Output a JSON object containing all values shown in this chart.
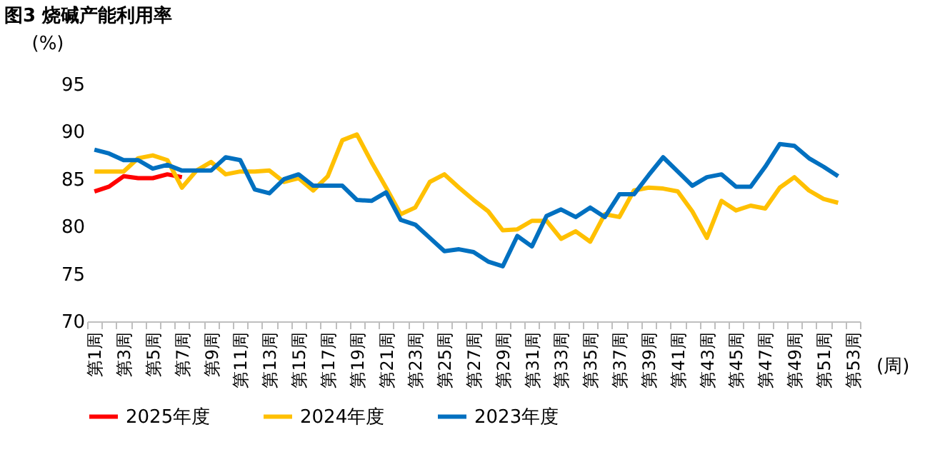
{
  "chart_data": {
    "type": "line",
    "title": "图3 烧碱产能利用率",
    "ylabel": "(%)",
    "xlabel": "(周)",
    "categories": [
      "第1周",
      null,
      "第3周",
      null,
      "第5周",
      null,
      "第7周",
      null,
      "第9周",
      null,
      "第11周",
      null,
      "第13周",
      null,
      "第15周",
      null,
      "第17周",
      null,
      "第19周",
      null,
      "第21周",
      null,
      "第23周",
      null,
      "第25周",
      null,
      "第27周",
      null,
      "第29周",
      null,
      "第31周",
      null,
      "第33周",
      null,
      "第35周",
      null,
      "第37周",
      null,
      "第39周",
      null,
      "第41周",
      null,
      "第43周",
      null,
      "第45周",
      null,
      "第47周",
      null,
      "第49周",
      null,
      "第51周",
      null,
      "第53周"
    ],
    "series": [
      {
        "name": "2025年度",
        "color": "#ff0000",
        "values": [
          83.7,
          84.2,
          85.3,
          85.1,
          85.1,
          85.5,
          85.2,
          null,
          null,
          null,
          null,
          null,
          null,
          null,
          null,
          null,
          null,
          null,
          null,
          null,
          null,
          null,
          null,
          null,
          null,
          null,
          null,
          null,
          null,
          null,
          null,
          null,
          null,
          null,
          null,
          null,
          null,
          null,
          null,
          null,
          null,
          null,
          null,
          null,
          null,
          null,
          null,
          null,
          null,
          null,
          null,
          null,
          null
        ]
      },
      {
        "name": "2024年度",
        "color": "#ffc000",
        "values": [
          85.8,
          85.8,
          85.8,
          87.2,
          87.5,
          87.0,
          84.1,
          85.9,
          86.8,
          85.5,
          85.8,
          85.8,
          85.9,
          84.7,
          85.1,
          83.8,
          85.3,
          89.1,
          89.7,
          86.8,
          84.1,
          81.3,
          82.0,
          84.7,
          85.5,
          84.1,
          82.8,
          81.6,
          79.6,
          79.7,
          80.6,
          80.6,
          78.7,
          79.5,
          78.4,
          81.3,
          81.0,
          83.8,
          84.1,
          84.0,
          83.7,
          81.6,
          78.8,
          82.7,
          81.7,
          82.2,
          81.9,
          84.1,
          85.2,
          83.8,
          82.9,
          82.5,
          null
        ]
      },
      {
        "name": "2023年度",
        "color": "#0070c0",
        "values": [
          88.1,
          87.7,
          87.0,
          87.0,
          86.1,
          86.5,
          85.9,
          85.9,
          85.9,
          87.3,
          87.0,
          83.9,
          83.5,
          85.0,
          85.5,
          84.3,
          84.3,
          84.3,
          82.8,
          82.7,
          83.6,
          80.7,
          80.2,
          78.8,
          77.4,
          77.6,
          77.3,
          76.3,
          75.8,
          79.0,
          77.9,
          81.1,
          81.8,
          81.0,
          82.0,
          81.0,
          83.4,
          83.4,
          85.4,
          87.3,
          85.8,
          84.3,
          85.2,
          85.5,
          84.2,
          84.2,
          86.3,
          88.7,
          88.5,
          87.2,
          86.3,
          85.3,
          null
        ]
      }
    ],
    "ylim": [
      70,
      95
    ],
    "yticks": [
      70,
      75,
      80,
      85,
      90,
      95
    ],
    "grid": false,
    "legend": "bottom",
    "line_style": "solid",
    "marker": "none"
  }
}
